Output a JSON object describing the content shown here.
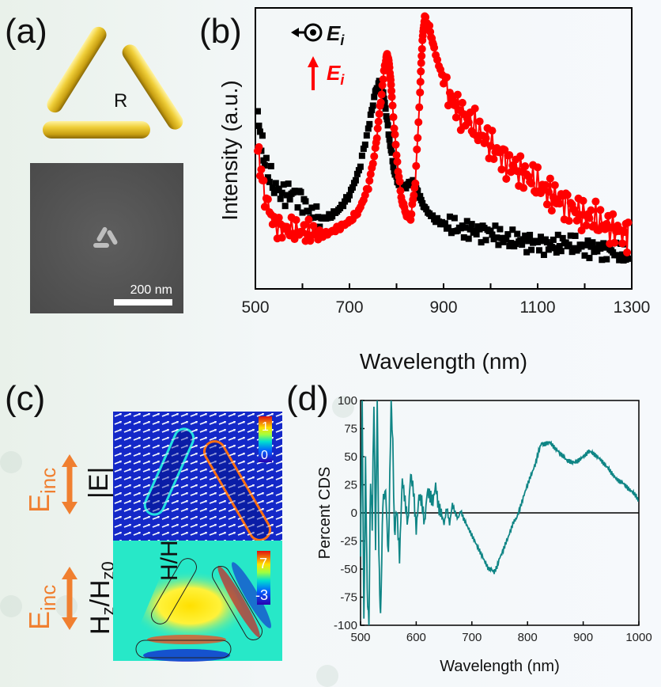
{
  "figure": {
    "panel_labels": {
      "a": "(a)",
      "b": "(b)",
      "c": "(c)",
      "d": "(d)"
    },
    "panel_a": {
      "center_label": "R",
      "scale_bar_label": "200 nm",
      "rod_color": "#e8c32e"
    },
    "panel_b_legend": {
      "black_label": "E",
      "black_sub": "i",
      "red_label": "E",
      "red_sub": "i"
    },
    "panel_c": {
      "top_map_label": "|E|",
      "bottom_map_label": "H",
      "bottom_map_label_sub1": "z",
      "bottom_map_label_mid": "/H",
      "bottom_map_label_sub2": "z0",
      "incident_label": "E",
      "incident_sub": "inc",
      "top_colorbar_max": "1",
      "top_colorbar_min": "0",
      "bottom_colorbar_max": "7",
      "bottom_colorbar_min": "-3",
      "arrow_color": "#f07f30"
    }
  },
  "chart_data": [
    {
      "id": "b",
      "type": "scatter",
      "title": "",
      "xlabel": "Wavelength (nm)",
      "ylabel": "Intensity (a.u.)",
      "xlim": [
        500,
        1300
      ],
      "ylim": [
        0,
        1
      ],
      "xticks": [
        500,
        700,
        900,
        1100,
        1300
      ],
      "xtick_minor": [
        600,
        800,
        1000,
        1200
      ],
      "grid": false,
      "legend": "top-left",
      "series": [
        {
          "name": "Ei out-of-plane (black)",
          "color": "#000000",
          "marker": "square",
          "x": [
            505,
            520,
            540,
            560,
            580,
            600,
            620,
            640,
            660,
            680,
            700,
            720,
            740,
            755,
            765,
            775,
            785,
            795,
            805,
            815,
            825,
            835,
            845,
            860,
            880,
            900,
            920,
            940,
            960,
            980,
            1000,
            1020,
            1040,
            1060,
            1080,
            1100,
            1120,
            1140,
            1160,
            1180,
            1200,
            1220,
            1240,
            1260,
            1280,
            1295
          ],
          "y": [
            0.62,
            0.45,
            0.36,
            0.33,
            0.34,
            0.31,
            0.25,
            0.24,
            0.25,
            0.28,
            0.33,
            0.42,
            0.58,
            0.72,
            0.76,
            0.68,
            0.54,
            0.42,
            0.37,
            0.36,
            0.37,
            0.38,
            0.34,
            0.28,
            0.24,
            0.22,
            0.21,
            0.2,
            0.2,
            0.19,
            0.19,
            0.17,
            0.16,
            0.16,
            0.15,
            0.15,
            0.14,
            0.14,
            0.15,
            0.14,
            0.13,
            0.13,
            0.12,
            0.12,
            0.11,
            0.1
          ]
        },
        {
          "name": "Ei in-plane (red)",
          "color": "#ff0000",
          "marker": "circle",
          "x": [
            505,
            520,
            540,
            560,
            580,
            600,
            620,
            640,
            660,
            680,
            700,
            720,
            740,
            755,
            765,
            775,
            780,
            785,
            790,
            800,
            810,
            820,
            830,
            840,
            850,
            855,
            860,
            870,
            880,
            900,
            920,
            940,
            960,
            980,
            1000,
            1020,
            1040,
            1060,
            1080,
            1100,
            1120,
            1140,
            1160,
            1180,
            1200,
            1220,
            1240,
            1260,
            1280,
            1295
          ],
          "y": [
            0.5,
            0.33,
            0.22,
            0.2,
            0.2,
            0.19,
            0.19,
            0.18,
            0.19,
            0.21,
            0.23,
            0.27,
            0.36,
            0.5,
            0.66,
            0.82,
            0.86,
            0.82,
            0.7,
            0.48,
            0.32,
            0.26,
            0.24,
            0.38,
            0.72,
            0.92,
            1.0,
            0.96,
            0.88,
            0.76,
            0.68,
            0.63,
            0.6,
            0.56,
            0.52,
            0.48,
            0.45,
            0.42,
            0.4,
            0.37,
            0.34,
            0.32,
            0.3,
            0.27,
            0.25,
            0.24,
            0.22,
            0.2,
            0.19,
            0.18
          ]
        }
      ]
    },
    {
      "id": "d",
      "type": "line",
      "title": "",
      "xlabel": "Wavelength (nm)",
      "ylabel": "Percent CDS",
      "xlim": [
        500,
        1000
      ],
      "ylim": [
        -100,
        100
      ],
      "xticks": [
        500,
        600,
        700,
        800,
        900,
        1000
      ],
      "yticks": [
        -100,
        -75,
        -50,
        -25,
        0,
        25,
        50,
        75,
        100
      ],
      "grid": false,
      "zero_line": true,
      "series": [
        {
          "name": "CDS",
          "color": "#0f8585",
          "x": [
            500,
            503,
            506,
            509,
            512,
            515,
            518,
            521,
            524,
            527,
            530,
            533,
            536,
            540,
            545,
            550,
            555,
            558,
            561,
            565,
            570,
            575,
            580,
            585,
            590,
            595,
            600,
            605,
            610,
            615,
            620,
            625,
            630,
            635,
            640,
            645,
            650,
            655,
            660,
            665,
            670,
            675,
            680,
            685,
            690,
            695,
            700,
            705,
            710,
            715,
            720,
            725,
            730,
            735,
            740,
            745,
            750,
            755,
            760,
            765,
            770,
            775,
            780,
            785,
            790,
            795,
            800,
            805,
            810,
            815,
            820,
            825,
            830,
            835,
            840,
            845,
            850,
            855,
            860,
            865,
            870,
            875,
            880,
            885,
            890,
            895,
            900,
            905,
            910,
            915,
            920,
            925,
            930,
            935,
            940,
            945,
            950,
            955,
            960,
            965,
            970,
            975,
            980,
            985,
            990,
            995,
            1000
          ],
          "y": [
            -40,
            100,
            -100,
            45,
            -70,
            -100,
            30,
            -10,
            100,
            -30,
            100,
            -40,
            -95,
            10,
            20,
            -40,
            100,
            60,
            -20,
            5,
            -40,
            30,
            10,
            -10,
            35,
            20,
            -15,
            15,
            10,
            -10,
            20,
            15,
            10,
            25,
            5,
            0,
            -10,
            5,
            -10,
            8,
            0,
            -5,
            2,
            -5,
            -10,
            -15,
            -20,
            -25,
            -30,
            -35,
            -40,
            -45,
            -50,
            -50,
            -53,
            -48,
            -40,
            -35,
            -28,
            -22,
            -15,
            -8,
            -5,
            2,
            10,
            18,
            25,
            32,
            38,
            45,
            55,
            62,
            61,
            62,
            63,
            60,
            57,
            55,
            52,
            50,
            47,
            46,
            45,
            45,
            46,
            48,
            50,
            52,
            55,
            54,
            52,
            50,
            48,
            45,
            42,
            40,
            36,
            33,
            30,
            28,
            27,
            25,
            22,
            20,
            18,
            15,
            10
          ]
        }
      ]
    }
  ]
}
